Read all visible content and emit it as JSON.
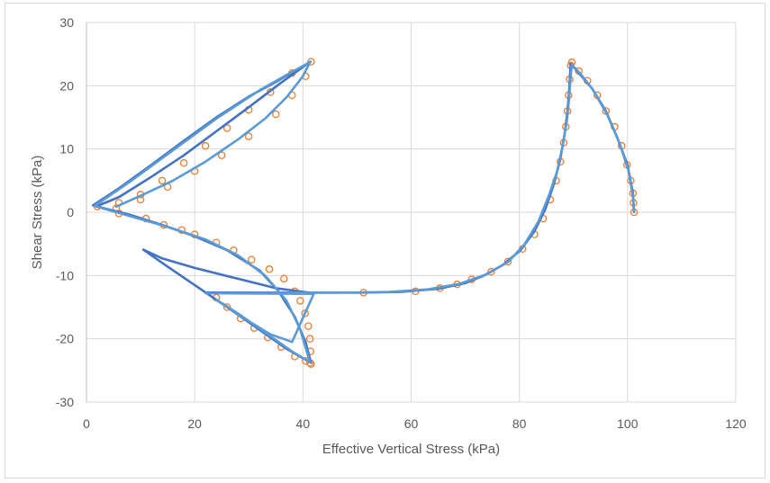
{
  "chart_data": {
    "type": "scatter",
    "xlabel": "Effective Vertical Stress (kPa)",
    "ylabel": "Shear Stress (kPa)",
    "xlim": [
      0,
      120
    ],
    "ylim": [
      -30,
      30
    ],
    "xticks": [
      0,
      20,
      40,
      60,
      80,
      100,
      120
    ],
    "yticks": [
      -30,
      -20,
      -10,
      0,
      10,
      20,
      30
    ],
    "grid": true,
    "legend": "none",
    "colors": {
      "markers": "#ed7d31",
      "line_dark": "#4472c4",
      "line_light": "#5b9bd5"
    },
    "series": [
      {
        "style": "circle-markers",
        "color": "#ed7d31",
        "points": [
          [
            101.2,
            0.0
          ],
          [
            101.1,
            1.5
          ],
          [
            101.0,
            3.0
          ],
          [
            100.6,
            5.0
          ],
          [
            99.9,
            7.5
          ],
          [
            98.9,
            10.5
          ],
          [
            97.6,
            13.5
          ],
          [
            96.0,
            16.0
          ],
          [
            94.4,
            18.5
          ],
          [
            92.6,
            20.8
          ],
          [
            91.0,
            22.3
          ],
          [
            89.7,
            23.7
          ],
          [
            89.5,
            23.2
          ],
          [
            89.3,
            21.0
          ],
          [
            89.1,
            18.5
          ],
          [
            88.9,
            16.0
          ],
          [
            88.6,
            13.5
          ],
          [
            88.2,
            11.0
          ],
          [
            87.6,
            8.0
          ],
          [
            86.8,
            5.0
          ],
          [
            85.7,
            2.0
          ],
          [
            84.4,
            -1.0
          ],
          [
            82.8,
            -3.5
          ],
          [
            80.6,
            -5.8
          ],
          [
            77.9,
            -7.8
          ],
          [
            74.8,
            -9.4
          ],
          [
            71.2,
            -10.6
          ],
          [
            68.5,
            -11.4
          ],
          [
            65.3,
            -12.0
          ],
          [
            60.8,
            -12.5
          ],
          [
            51.2,
            -12.7
          ],
          [
            41.5,
            -24.0
          ],
          [
            41.4,
            -22.0
          ],
          [
            41.3,
            -20.0
          ],
          [
            41.0,
            -18.0
          ],
          [
            40.4,
            -16.0
          ],
          [
            39.5,
            -14.0
          ],
          [
            38.5,
            -12.5
          ],
          [
            36.5,
            -10.5
          ],
          [
            33.8,
            -9.0
          ],
          [
            30.5,
            -7.5
          ],
          [
            27.2,
            -6.0
          ],
          [
            24.0,
            -4.8
          ],
          [
            20.0,
            -3.5
          ],
          [
            17.6,
            -2.8
          ],
          [
            14.3,
            -2.0
          ],
          [
            11.0,
            -1.0
          ],
          [
            6.0,
            -0.2
          ],
          [
            2.0,
            0.9
          ],
          [
            5.5,
            0.6
          ],
          [
            10.0,
            2.0
          ],
          [
            15.0,
            4.0
          ],
          [
            20.0,
            6.5
          ],
          [
            25.0,
            9.0
          ],
          [
            30.0,
            12.0
          ],
          [
            35.0,
            15.5
          ],
          [
            38.0,
            18.5
          ],
          [
            40.5,
            21.5
          ],
          [
            41.5,
            23.8
          ],
          [
            38.0,
            22.0
          ],
          [
            34.0,
            19.0
          ],
          [
            30.0,
            16.2
          ],
          [
            26.0,
            13.3
          ],
          [
            22.0,
            10.5
          ],
          [
            18.0,
            7.8
          ],
          [
            14.0,
            5.0
          ],
          [
            10.0,
            2.8
          ],
          [
            6.0,
            1.5
          ],
          [
            24.0,
            -13.5
          ],
          [
            26.0,
            -15.0
          ],
          [
            28.5,
            -16.8
          ],
          [
            31.0,
            -18.3
          ],
          [
            33.5,
            -19.8
          ],
          [
            36.0,
            -21.3
          ],
          [
            38.5,
            -22.8
          ],
          [
            40.5,
            -23.5
          ],
          [
            41.3,
            -23.8
          ]
        ]
      },
      {
        "style": "line",
        "color": "#4472c4",
        "points": [
          [
            101.2,
            0.0
          ],
          [
            101.0,
            3.0
          ],
          [
            100.0,
            7.5
          ],
          [
            98.0,
            12.0
          ],
          [
            96.0,
            16.0
          ],
          [
            93.5,
            19.5
          ],
          [
            91.0,
            22.0
          ],
          [
            89.5,
            23.5
          ],
          [
            89.4,
            22.0
          ],
          [
            89.2,
            19.0
          ],
          [
            88.9,
            16.0
          ],
          [
            88.4,
            12.5
          ],
          [
            87.6,
            8.5
          ],
          [
            86.4,
            4.5
          ],
          [
            84.8,
            0.5
          ],
          [
            82.8,
            -3.0
          ],
          [
            80.2,
            -6.0
          ],
          [
            77.0,
            -8.3
          ],
          [
            73.5,
            -10.0
          ],
          [
            70.0,
            -11.2
          ],
          [
            65.0,
            -12.1
          ],
          [
            58.0,
            -12.6
          ],
          [
            51.0,
            -12.7
          ],
          [
            44.0,
            -12.7
          ],
          [
            22.0,
            -12.7
          ],
          [
            40.5,
            -12.7
          ],
          [
            42.0,
            -12.8
          ],
          [
            35.0,
            -12.0
          ],
          [
            28.0,
            -10.5
          ],
          [
            20.0,
            -8.8
          ],
          [
            14.0,
            -7.3
          ],
          [
            10.5,
            -5.9
          ],
          [
            14.0,
            -8.0
          ],
          [
            20.0,
            -11.5
          ],
          [
            26.0,
            -15.0
          ],
          [
            32.0,
            -18.6
          ],
          [
            37.0,
            -21.6
          ],
          [
            41.5,
            -23.8
          ],
          [
            40.5,
            -20.5
          ],
          [
            38.5,
            -16.5
          ],
          [
            35.5,
            -12.5
          ],
          [
            32.0,
            -9.2
          ],
          [
            26.0,
            -6.0
          ],
          [
            20.0,
            -3.8
          ],
          [
            14.0,
            -2.0
          ],
          [
            8.0,
            -0.4
          ],
          [
            2.5,
            0.8
          ],
          [
            1.2,
            1.1
          ],
          [
            6.0,
            3.8
          ],
          [
            12.0,
            7.5
          ],
          [
            18.0,
            11.3
          ],
          [
            24.0,
            15.0
          ],
          [
            30.0,
            18.3
          ],
          [
            35.0,
            20.6
          ],
          [
            39.0,
            22.6
          ],
          [
            41.4,
            23.8
          ],
          [
            36.0,
            20.5
          ],
          [
            30.0,
            16.6
          ],
          [
            24.0,
            12.8
          ],
          [
            18.0,
            9.0
          ],
          [
            12.0,
            5.6
          ],
          [
            6.0,
            2.4
          ],
          [
            2.0,
            1.0
          ]
        ]
      },
      {
        "style": "line",
        "color": "#5b9bd5",
        "points": [
          [
            101.2,
            0.0
          ],
          [
            101.0,
            2.5
          ],
          [
            100.2,
            6.5
          ],
          [
            98.5,
            11.0
          ],
          [
            96.2,
            15.5
          ],
          [
            93.5,
            19.5
          ],
          [
            91.2,
            22.0
          ],
          [
            89.7,
            23.3
          ],
          [
            89.5,
            21.5
          ],
          [
            89.2,
            18.0
          ],
          [
            88.8,
            14.5
          ],
          [
            88.0,
            10.5
          ],
          [
            87.0,
            6.5
          ],
          [
            85.4,
            2.5
          ],
          [
            83.5,
            -1.5
          ],
          [
            81.0,
            -5.0
          ],
          [
            78.0,
            -7.8
          ],
          [
            74.0,
            -9.8
          ],
          [
            69.0,
            -11.3
          ],
          [
            63.0,
            -12.2
          ],
          [
            56.0,
            -12.6
          ],
          [
            50.0,
            -12.7
          ],
          [
            22.0,
            -12.8
          ],
          [
            42.0,
            -12.9
          ],
          [
            38.0,
            -20.5
          ],
          [
            34.0,
            -19.3
          ],
          [
            29.0,
            -16.7
          ],
          [
            24.0,
            -13.8
          ],
          [
            28.0,
            -16.0
          ],
          [
            33.0,
            -19.0
          ],
          [
            38.0,
            -22.0
          ],
          [
            41.3,
            -23.7
          ],
          [
            39.5,
            -18.5
          ],
          [
            37.0,
            -14.0
          ],
          [
            33.0,
            -10.0
          ],
          [
            28.0,
            -6.8
          ],
          [
            22.0,
            -4.3
          ],
          [
            15.0,
            -2.3
          ],
          [
            8.0,
            -0.6
          ],
          [
            1.5,
            1.0
          ],
          [
            8.0,
            4.8
          ],
          [
            16.0,
            9.8
          ],
          [
            24.0,
            14.8
          ],
          [
            32.0,
            19.3
          ],
          [
            38.0,
            22.2
          ],
          [
            41.3,
            23.7
          ],
          [
            40.0,
            21.5
          ],
          [
            37.0,
            18.2
          ],
          [
            33.0,
            14.8
          ],
          [
            28.0,
            11.5
          ],
          [
            22.0,
            8.0
          ],
          [
            16.0,
            5.0
          ],
          [
            10.0,
            2.6
          ],
          [
            5.5,
            0.9
          ]
        ]
      }
    ]
  }
}
